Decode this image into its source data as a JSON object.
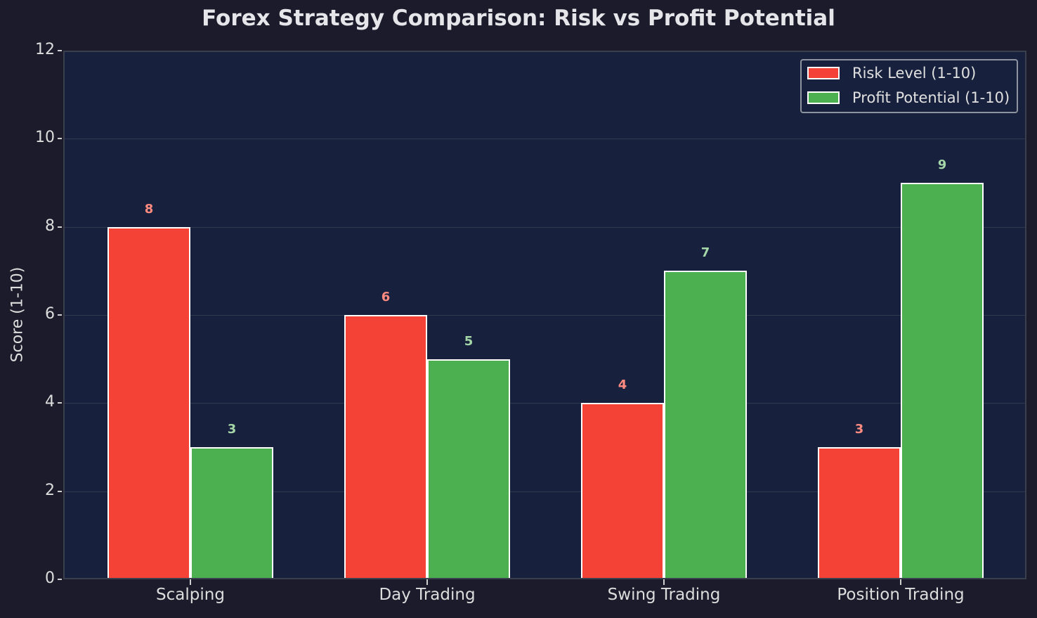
{
  "chart_data": {
    "type": "bar",
    "title": "Forex Strategy Comparison: Risk vs Profit Potential",
    "xlabel": "",
    "ylabel": "Score (1-10)",
    "ylim": [
      0,
      12
    ],
    "yticks": [
      "0",
      "2",
      "4",
      "6",
      "8",
      "10",
      "12"
    ],
    "categories": [
      "Scalping",
      "Day Trading",
      "Swing Trading",
      "Position Trading"
    ],
    "series": [
      {
        "name": "Risk Level (1-10)",
        "color": "#f44336",
        "label_color": "#ff8a80",
        "values": [
          8,
          6,
          4,
          3
        ]
      },
      {
        "name": "Profit Potential (1-10)",
        "color": "#4caf50",
        "label_color": "#a5d6a7",
        "values": [
          3,
          5,
          7,
          9
        ]
      }
    ],
    "grid": true,
    "legend_position": "upper right"
  }
}
